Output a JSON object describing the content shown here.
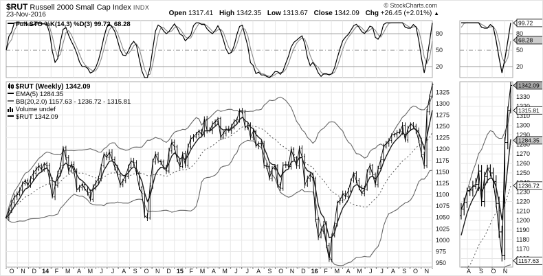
{
  "header": {
    "symbol": "$RUT",
    "name": "Russell 2000 Small Cap Index",
    "exchange": "INDX",
    "date": "23-Nov-2016",
    "copyright": "© StockCharts.com",
    "quote": {
      "open_label": "Open",
      "open": "1317.41",
      "high_label": "High",
      "high": "1342.35",
      "low_label": "Low",
      "low": "1313.67",
      "close_label": "Close",
      "close": "1342.09",
      "chg_label": "Chg",
      "chg": "+26.45 (+2.01%)",
      "arrow": "▲"
    }
  },
  "legends": {
    "stoch": "Full STO %K(14,3) %D(3) 99.72, 68.28",
    "price_title": "$RUT (Weekly) 1342.09",
    "ema": "EMA(5) 1284.35",
    "bb": "BB(20,2.0) 1157.63 - 1236.72 - 1315.81",
    "volume": "Volume undef",
    "rut": "$RUT 1342.09"
  },
  "chart_data": {
    "type": "line",
    "style": "weekly-ohlc-bars-with-indicators",
    "title": "$RUT Russell 2000 Small Cap Index (Weekly)",
    "x_range": "Oct-2013 to Nov-2016",
    "closes": [
      1050,
      1065,
      1082,
      1095,
      1100,
      1110,
      1124,
      1131,
      1121,
      1135,
      1147,
      1155,
      1163,
      1156,
      1168,
      1164,
      1131,
      1095,
      1120,
      1146,
      1164,
      1203,
      1181,
      1152,
      1166,
      1151,
      1111,
      1116,
      1123,
      1112,
      1105,
      1090,
      1116,
      1126,
      1136,
      1163,
      1189,
      1182,
      1193,
      1177,
      1160,
      1144,
      1122,
      1131,
      1141,
      1160,
      1174,
      1170,
      1147,
      1116,
      1102,
      1053,
      1049,
      1119,
      1172,
      1189,
      1174,
      1172,
      1159,
      1152,
      1196,
      1215,
      1205,
      1176,
      1162,
      1190,
      1165,
      1205,
      1223,
      1227,
      1233,
      1240,
      1232,
      1266,
      1241,
      1240,
      1255,
      1260,
      1267,
      1226,
      1235,
      1244,
      1240,
      1249,
      1261,
      1265,
      1285,
      1280,
      1248,
      1252,
      1226,
      1239,
      1207,
      1213,
      1212,
      1164,
      1162,
      1136,
      1157,
      1163,
      1122,
      1114,
      1165,
      1166,
      1162,
      1200,
      1181,
      1163,
      1202,
      1183,
      1121,
      1135,
      1144,
      1136,
      1046,
      1007,
      1020,
      1035,
      988,
      958,
      1010,
      1037,
      1082,
      1088,
      1102,
      1096,
      1108,
      1130,
      1147,
      1131,
      1115,
      1103,
      1112,
      1150,
      1164,
      1144,
      1122,
      1157,
      1177,
      1205,
      1212,
      1219,
      1231,
      1232,
      1236,
      1238,
      1252,
      1220,
      1246,
      1255,
      1250,
      1241,
      1218,
      1188,
      1163,
      1282,
      1316,
      1342
    ],
    "indicators": {
      "stochastic": {
        "label": "Full STO %K(14,3) %D(3)",
        "k_period": 14,
        "k_smooth": 3,
        "d_period": 3,
        "last_k": 99.72,
        "last_d": 68.28
      },
      "ema": {
        "period": 5,
        "last": 1284.35
      },
      "bollinger": {
        "period": 20,
        "mult": 2.0,
        "last_lower": 1157.63,
        "last_middle": 1236.72,
        "last_upper": 1315.81
      },
      "volume": "undef"
    },
    "stoch_yticks": [
      80,
      50,
      20
    ],
    "main_yticks": [
      1325,
      1300,
      1275,
      1250,
      1225,
      1200,
      1175,
      1150,
      1125,
      1100,
      1075,
      1050,
      1025,
      1000,
      975,
      950
    ],
    "mini_yticks": [
      1330,
      1320,
      1310,
      1300,
      1290,
      1280,
      1270,
      1260,
      1250,
      1240,
      1230,
      1220,
      1210,
      1200,
      1190,
      1180,
      1170,
      1160
    ],
    "x_months": [
      {
        "t": "O"
      },
      {
        "t": "N"
      },
      {
        "t": "D"
      },
      {
        "t": "14",
        "b": true
      },
      {
        "t": "F"
      },
      {
        "t": "M"
      },
      {
        "t": "A"
      },
      {
        "t": "M"
      },
      {
        "t": "J"
      },
      {
        "t": "J"
      },
      {
        "t": "A"
      },
      {
        "t": "S"
      },
      {
        "t": "O"
      },
      {
        "t": "N"
      },
      {
        "t": "D"
      },
      {
        "t": "15",
        "b": true
      },
      {
        "t": "F"
      },
      {
        "t": "M"
      },
      {
        "t": "A"
      },
      {
        "t": "M"
      },
      {
        "t": "J"
      },
      {
        "t": "J"
      },
      {
        "t": "A"
      },
      {
        "t": "S"
      },
      {
        "t": "O"
      },
      {
        "t": "N"
      },
      {
        "t": "D"
      },
      {
        "t": "16",
        "b": true
      },
      {
        "t": "F"
      },
      {
        "t": "M"
      },
      {
        "t": "A"
      },
      {
        "t": "M"
      },
      {
        "t": "J"
      },
      {
        "t": "J"
      },
      {
        "t": "A"
      },
      {
        "t": "S"
      },
      {
        "t": "O"
      },
      {
        "t": "N"
      }
    ],
    "mini_weeks": 18,
    "mini_x_labels": [
      "A",
      "S",
      "O",
      "N"
    ],
    "price_tags": [
      {
        "v": 1342.09,
        "fill": "#aaaaaa"
      },
      {
        "v": 1315.81,
        "fill": "#ffffff"
      },
      {
        "v": 1284.35,
        "fill": "#cccccc"
      },
      {
        "v": 1236.72,
        "fill": "#ffffff"
      },
      {
        "v": 1157.63,
        "fill": "#ffffff"
      }
    ],
    "stoch_tags": [
      {
        "v": 99.72,
        "fill": "#ffffff"
      },
      {
        "v": 68.28,
        "fill": "#cccccc"
      }
    ],
    "colors": {
      "k_line": "#000000",
      "d_line": "#888888",
      "band": "#666666",
      "mid_band": "#555555",
      "bar": "#000000",
      "ema": "#1a1a1a",
      "grid": "#e7e7e7",
      "axis_line": "#999999",
      "border": "#aaaaaa",
      "label": "#111111"
    },
    "ylim_main": [
      941,
      1348
    ],
    "ylim_mini": [
      1151,
      1346
    ],
    "ylim_stoch": [
      0,
      104
    ],
    "legend_position": "top-left-inside",
    "grid": true
  }
}
